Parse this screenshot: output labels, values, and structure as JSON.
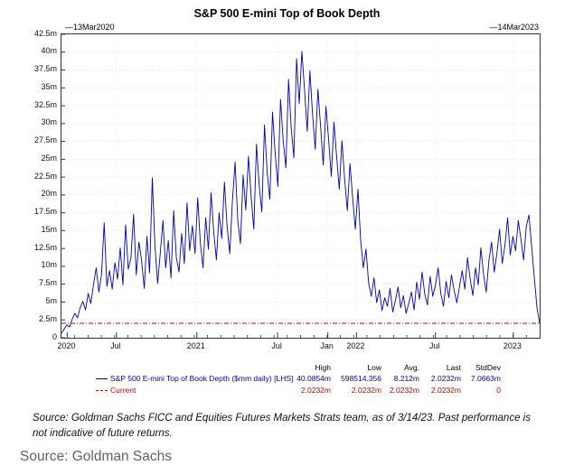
{
  "chart": {
    "title": "S&P 500 E-mini Top of Book Depth",
    "date_start_label": "—13Mar2020",
    "date_end_label": "—14Mar2023"
  },
  "legend": {
    "headers": [
      "High",
      "Low",
      "Avg.",
      "Last",
      "StdDev"
    ],
    "rows": [
      {
        "label": "S&P 500 E-mini Top of Book Depth ($mm daily) [LHS]",
        "color": "#0000aa",
        "stats": [
          "40.0854m",
          "598514.356",
          "8.212m",
          "2.0232m",
          "7.0663m"
        ]
      },
      {
        "label": "Current",
        "color": "#cc0000",
        "stats": [
          "2.0232m",
          "2.0232m",
          "2.0232m",
          "2.0232m",
          "0"
        ]
      }
    ]
  },
  "footnote": "Source: Goldman Sachs FICC and Equities Futures Markets Strats team, as of 3/14/23. Past performance is not indicative of future returns.",
  "source_footer": "Source: Goldman Sachs",
  "chart_data": {
    "type": "line",
    "title": "S&P 500 E-mini Top of Book Depth",
    "x_range": [
      "13Mar2020",
      "14Mar2023"
    ],
    "ylim": [
      0,
      42.5
    ],
    "y_unit": "millions ($mm daily top-of-book depth)",
    "grid": true,
    "y_tick_labels": [
      "42.5m",
      "40m",
      "37.5m",
      "35m",
      "32.5m",
      "30m",
      "27.5m",
      "25m",
      "22.5m",
      "20m",
      "17.5m",
      "15m",
      "12.5m",
      "10m",
      "7.5m",
      "5m",
      "2.5m",
      "0"
    ],
    "x_ticks": [
      {
        "label": "2020",
        "pos": 0.012
      },
      {
        "label": "Jul",
        "pos": 0.115
      },
      {
        "label": "2021",
        "pos": 0.283
      },
      {
        "label": "Jul",
        "pos": 0.452
      },
      {
        "label": "Jan",
        "pos": 0.557
      },
      {
        "label": "2022",
        "pos": 0.617
      },
      {
        "label": "Jul",
        "pos": 0.782
      },
      {
        "label": "2023",
        "pos": 0.945
      }
    ],
    "series": [
      {
        "name": "S&P 500 E-mini Top of Book Depth ($mm daily) [LHS]",
        "color": "#0000bb",
        "style": "solid",
        "stats": {
          "high": "40.0854m",
          "low": "598514.356",
          "avg": "8.212m",
          "last": "2.0232m",
          "stddev": "7.0663m"
        },
        "values": [
          0.6,
          1.2,
          1.8,
          1.5,
          2.6,
          3.4,
          2.8,
          4.2,
          5.1,
          3.9,
          6.2,
          4.8,
          7.5,
          9.8,
          6.4,
          8.9,
          16.1,
          7.2,
          9.4,
          6.8,
          10.5,
          8.2,
          12.6,
          7.4,
          15.8,
          9.6,
          11.2,
          17.3,
          8.8,
          13.4,
          10.8,
          6.9,
          14.2,
          9.1,
          22.4,
          12.8,
          7.6,
          11.9,
          16.4,
          9.8,
          13.6,
          8.4,
          17.8,
          11.2,
          9.2,
          14.6,
          10.4,
          18.9,
          12.2,
          15.7,
          11.8,
          19.6,
          13.2,
          9.8,
          16.8,
          12.4,
          20.3,
          14.8,
          10.9,
          17.5,
          13.9,
          21.8,
          15.6,
          11.8,
          19.2,
          24.6,
          16.4,
          13.2,
          22.8,
          17.9,
          25.4,
          19.8,
          15.2,
          27.1,
          21.4,
          17.6,
          29.8,
          23.2,
          19.4,
          31.6,
          25.8,
          21.2,
          33.4,
          27.6,
          23.8,
          36.2,
          29.4,
          25.2,
          39.1,
          32.8,
          40.1,
          34.6,
          28.9,
          37.4,
          31.2,
          26.4,
          34.8,
          29.6,
          24.2,
          32.4,
          27.8,
          22.6,
          30.2,
          25.4,
          20.8,
          27.6,
          22.2,
          17.8,
          24.4,
          19.6,
          15.2,
          20.8,
          13.6,
          9.8,
          12.4,
          7.6,
          5.8,
          8.4,
          4.9,
          6.7,
          3.8,
          5.6,
          4.4,
          6.9,
          3.6,
          5.2,
          7.1,
          4.2,
          5.9,
          3.4,
          4.8,
          6.4,
          3.9,
          7.8,
          5.4,
          9.2,
          6.1,
          4.6,
          8.6,
          5.8,
          7.4,
          9.8,
          6.2,
          4.4,
          7.9,
          5.6,
          8.8,
          6.6,
          4.9,
          7.2,
          9.4,
          6.8,
          11.2,
          8.2,
          5.9,
          9.8,
          7.4,
          12.6,
          8.9,
          6.4,
          10.8,
          13.4,
          9.2,
          11.8,
          15.2,
          10.4,
          12.9,
          16.8,
          11.6,
          14.2,
          12.2,
          16.4,
          13.8,
          10.9,
          15.6,
          17.2,
          12.8,
          8.4,
          4.2,
          2.0
        ]
      },
      {
        "name": "Current",
        "color": "#cc0000",
        "style": "dash-dot",
        "value": 2.0232,
        "stats": {
          "high": "2.0232m",
          "low": "2.0232m",
          "avg": "2.0232m",
          "last": "2.0232m",
          "stddev": "0"
        }
      }
    ]
  }
}
